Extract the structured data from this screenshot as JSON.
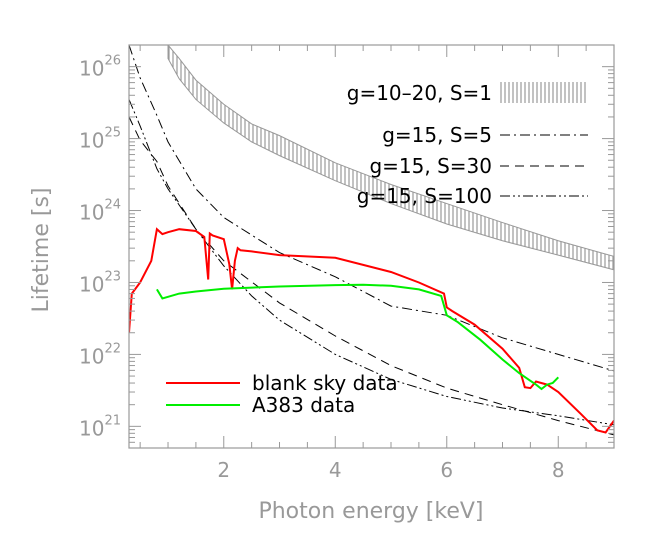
{
  "chart_data": {
    "type": "line",
    "title": "",
    "xlabel": "Photon energy [keV]",
    "ylabel": "Lifetime [s]",
    "x_scale": "linear",
    "y_scale": "log",
    "xlim": [
      0.3,
      9.0
    ],
    "ylim": [
      5e+20,
      2e+26
    ],
    "x_ticks": [
      2,
      4,
      6,
      8
    ],
    "x_tick_labels": [
      "2",
      "4",
      "6",
      "8"
    ],
    "y_ticks": [
      1e+21,
      1e+22,
      1e+23,
      1e+24,
      1e+25,
      1e+26
    ],
    "y_tick_labels": [
      {
        "base": "10",
        "exp": "21"
      },
      {
        "base": "10",
        "exp": "22"
      },
      {
        "base": "10",
        "exp": "23"
      },
      {
        "base": "10",
        "exp": "24"
      },
      {
        "base": "10",
        "exp": "25"
      },
      {
        "base": "10",
        "exp": "26"
      }
    ],
    "grid": false,
    "legend_top": {
      "placement": "top-right",
      "entries": [
        {
          "label": "g=10–20, S=1",
          "style": "hatched-band"
        },
        {
          "label": "g=15, S=5",
          "style": "dash-dot"
        },
        {
          "label": "g=15, S=30",
          "style": "dashed"
        },
        {
          "label": "g=15, S=100",
          "style": "dash-dot-dot"
        }
      ]
    },
    "legend_bottom": {
      "placement": "bottom-left",
      "entries": [
        {
          "label": "blank sky data",
          "color": "#ff0000"
        },
        {
          "label": "A383 data",
          "color": "#00ee00"
        }
      ]
    },
    "series": [
      {
        "name": "g=10–20, S=1",
        "style": "hatched-band",
        "color": "#999999",
        "x": [
          1.0,
          1.2,
          1.5,
          2.0,
          2.5,
          3.0,
          4.0,
          5.0,
          6.0,
          7.0,
          8.0,
          9.0
        ],
        "y_low": [
          1.3e+26,
          6.8e+25,
          3.5e+25,
          1.65e+25,
          9e+24,
          5.8e+24,
          2.6e+24,
          1.25e+24,
          6.5e+23,
          3.8e+23,
          2.4e+23,
          1.5e+23
        ],
        "y_high": [
          2e+26,
          1.3e+26,
          6.5e+25,
          3e+25,
          1.6e+25,
          1.1e+25,
          4.6e+24,
          2.3e+24,
          1.25e+24,
          6.8e+23,
          3.8e+23,
          2.3e+23
        ]
      },
      {
        "name": "g=15, S=5",
        "style": "dash-dot",
        "color": "#000000",
        "x": [
          0.3,
          0.5,
          0.8,
          1.0,
          1.5,
          2.0,
          3.0,
          4.0,
          5.0,
          6.0,
          7.0,
          8.0,
          9.0
        ],
        "y": [
          2e+26,
          7e+25,
          2.1e+25,
          9e+24,
          2e+24,
          8e+23,
          2.6e+23,
          1.2e+23,
          4.7e+22,
          3.5e+22,
          1.7e+22,
          1e+22,
          5.9e+21
        ]
      },
      {
        "name": "g=15, S=30",
        "style": "dashed",
        "color": "#000000",
        "x": [
          0.3,
          0.5,
          0.8,
          1.0,
          1.5,
          2.0,
          3.0,
          4.0,
          5.0,
          6.0,
          7.0,
          8.0,
          9.0
        ],
        "y": [
          2e+25,
          9.5e+24,
          4.8e+24,
          2.2e+24,
          5.5e+23,
          2e+23,
          5.2e+22,
          1.8e+22,
          7e+21,
          3.4e+21,
          2e+21,
          1.2e+21,
          7.6e+20
        ]
      },
      {
        "name": "g=15, S=100",
        "style": "dash-dot-dot",
        "color": "#000000",
        "x": [
          0.3,
          0.5,
          0.8,
          1.0,
          1.5,
          2.0,
          2.5,
          3.0,
          4.0,
          5.0,
          6.0,
          7.0,
          8.0,
          9.0
        ],
        "y": [
          3.5e+25,
          1.5e+25,
          3.8e+24,
          2e+24,
          5.5e+23,
          1.7e+23,
          6.5e+22,
          3e+22,
          1e+22,
          4.5e+21,
          2.6e+21,
          1.8e+21,
          1.4e+21,
          1.05e+21
        ]
      },
      {
        "name": "blank sky data",
        "style": "solid",
        "color": "#ff0000",
        "x": [
          0.3,
          0.35,
          0.5,
          0.7,
          0.8,
          0.9,
          1.0,
          1.2,
          1.5,
          1.65,
          1.72,
          1.75,
          1.8,
          2.0,
          2.1,
          2.15,
          2.2,
          2.25,
          2.3,
          2.5,
          3.0,
          4.0,
          5.0,
          5.5,
          5.95,
          6.0,
          6.1,
          6.5,
          7.0,
          7.3,
          7.4,
          7.5,
          7.6,
          7.8,
          8.0,
          8.4,
          8.7,
          8.85,
          9.0
        ],
        "y": [
          2e+22,
          7e+22,
          1e+23,
          2e+23,
          5.5e+23,
          4.7e+23,
          5e+23,
          5.5e+23,
          5.2e+23,
          4.3e+23,
          1.1e+23,
          4.8e+23,
          4.5e+23,
          4e+23,
          1.8e+23,
          8e+22,
          2e+23,
          3e+23,
          2.8e+23,
          2.7e+23,
          2.4e+23,
          2.2e+23,
          1.4e+23,
          1e+23,
          7e+22,
          4.5e+22,
          4e+22,
          2.6e+22,
          1.2e+22,
          6.5e+21,
          3.5e+21,
          3.4e+21,
          4.2e+21,
          3.8e+21,
          3e+21,
          1.5e+21,
          8.8e+20,
          8.2e+20,
          1.2e+21
        ]
      },
      {
        "name": "A383 data",
        "style": "solid",
        "color": "#00ee00",
        "x": [
          0.8,
          0.9,
          1.2,
          1.5,
          2.0,
          3.0,
          4.0,
          4.5,
          5.0,
          5.5,
          5.9,
          6.0,
          6.2,
          6.6,
          7.0,
          7.3,
          7.5,
          7.6,
          7.7,
          7.8,
          7.9,
          8.0
        ],
        "y": [
          8e+22,
          6e+22,
          7e+22,
          7.5e+22,
          8.2e+22,
          8.8e+22,
          9.2e+22,
          9.3e+22,
          9e+22,
          8e+22,
          6.5e+22,
          3.5e+22,
          2.8e+22,
          1.6e+22,
          8.5e+21,
          5.5e+21,
          4.3e+21,
          3.8e+21,
          3.3e+21,
          3.8e+21,
          4e+21,
          4.8e+21
        ]
      }
    ]
  }
}
